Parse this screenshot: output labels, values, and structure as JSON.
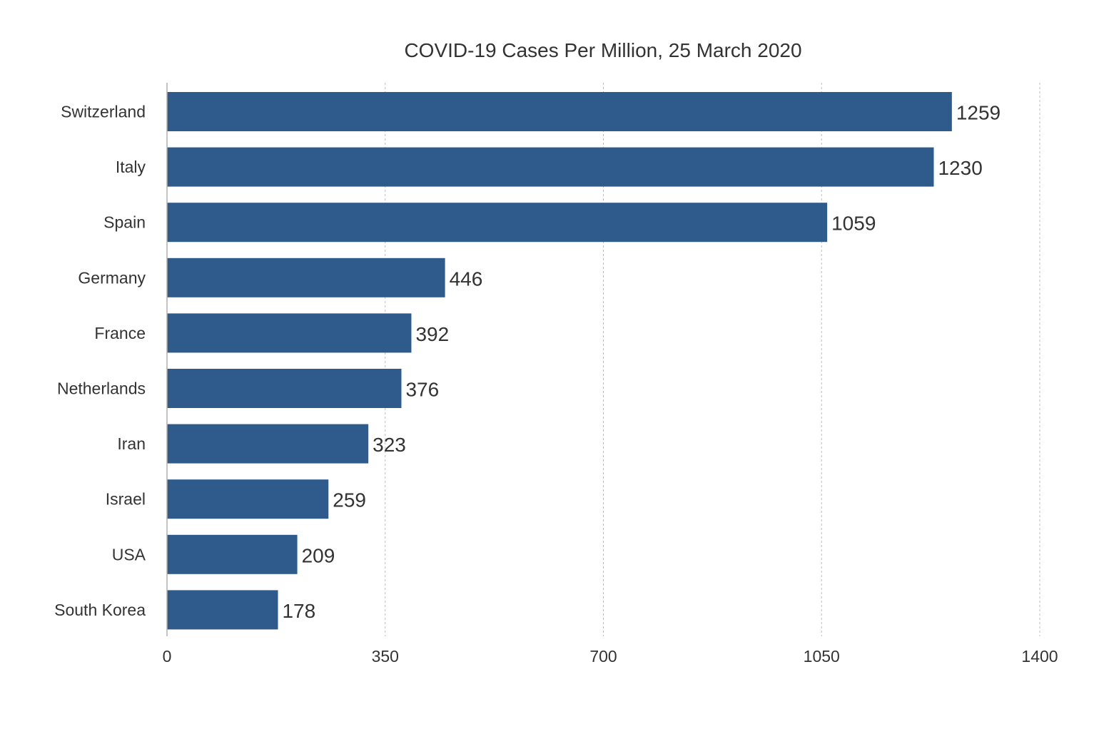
{
  "chart_data": {
    "type": "bar",
    "orientation": "horizontal",
    "title": "COVID-19 Cases Per Million, 25 March 2020",
    "xlabel": "",
    "ylabel": "",
    "categories": [
      "Switzerland",
      "Italy",
      "Spain",
      "Germany",
      "France",
      "Netherlands",
      "Iran",
      "Israel",
      "USA",
      "South Korea"
    ],
    "values": [
      1259,
      1230,
      1059,
      446,
      392,
      376,
      323,
      259,
      209,
      178
    ],
    "xlim": [
      0,
      1400
    ],
    "xticks": [
      "0",
      "350",
      "700",
      "1050",
      "1400"
    ],
    "grid": "vertical-dashed",
    "legend": "none",
    "bar_color": "#2e5a8c"
  }
}
